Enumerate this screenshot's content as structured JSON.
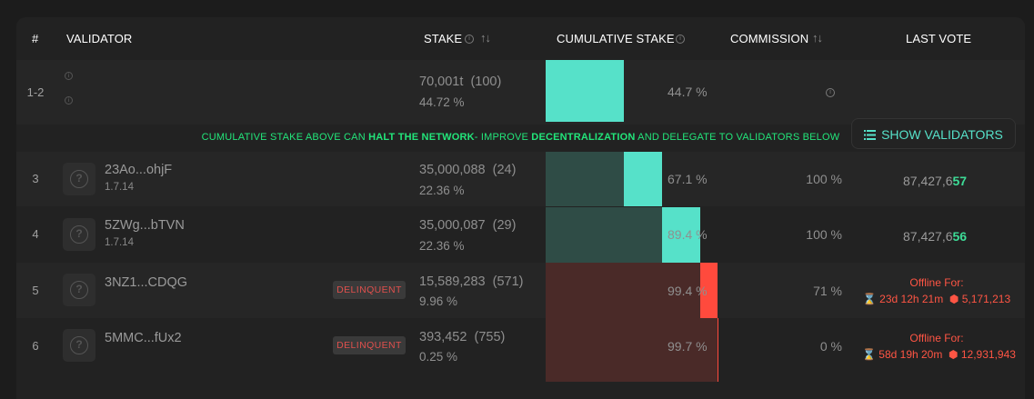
{
  "colors": {
    "cumulative_active": "#56e1c9",
    "cumulative_past": "#2f4c46",
    "delinquent_bg": "#4a2a28",
    "delinquent_bar": "#ff4a3d",
    "warning_text": "#22e57a",
    "last_vote_highlight": "#3ddc97",
    "offline_text": "#ff5544"
  },
  "header": {
    "rank": "#",
    "validator": "VALIDATOR",
    "stake": "STAKE",
    "cumulative_stake": "CUMULATIVE STAKE",
    "commission": "COMMISSION",
    "last_vote": "LAST VOTE",
    "sort_icons": "↑↓"
  },
  "superminority": {
    "rank": "1-2",
    "stake_amount": "70,001t",
    "stake_count": "(100)",
    "stake_percent": "44.72 %",
    "cumulative_percent": "44.7 %",
    "cumulative_value": 44.7,
    "show_validators_label": "SHOW VALIDATORS"
  },
  "warning": {
    "part1": "CUMULATIVE STAKE ABOVE CAN ",
    "strong1": "HALT THE NETWORK",
    "part2": "- IMPROVE ",
    "strong2": "DECENTRALIZATION",
    "part3": " AND DELEGATE TO VALIDATORS BELOW"
  },
  "validators": [
    {
      "rank": "3",
      "name": "23Ao...ohjF",
      "version": "1.7.14",
      "stake_amount": "35,000,088",
      "stake_count": "(24)",
      "stake_percent": "22.36 %",
      "cumulative_percent": "67.1 %",
      "cumulative_value": 67.1,
      "commission": "100 %",
      "last_vote_prefix": "87,427,6",
      "last_vote_suffix": "57"
    },
    {
      "rank": "4",
      "name": "5ZWg...bTVN",
      "version": "1.7.14",
      "stake_amount": "35,000,087",
      "stake_count": "(29)",
      "stake_percent": "22.36 %",
      "cumulative_percent": "89.4 %",
      "cumulative_value": 89.4,
      "commission": "100 %",
      "last_vote_prefix": "87,427,6",
      "last_vote_suffix": "56"
    },
    {
      "rank": "5",
      "name": "3NZ1...CDQG",
      "badge": "DELINQUENT",
      "stake_amount": "15,589,283",
      "stake_count": "(571)",
      "stake_percent": "9.96 %",
      "cumulative_percent": "99.4 %",
      "cumulative_value": 99.4,
      "commission": "71 %",
      "offline_title": "Offline For:",
      "offline_time": "23d 12h 21m",
      "offline_slots": "5,171,213"
    },
    {
      "rank": "6",
      "name": "5MMC...fUx2",
      "badge": "DELINQUENT",
      "stake_amount": "393,452",
      "stake_count": "(755)",
      "stake_percent": "0.25 %",
      "cumulative_percent": "99.7 %",
      "cumulative_value": 99.7,
      "commission": "0 %",
      "offline_title": "Offline For:",
      "offline_time": "58d 19h 20m",
      "offline_slots": "12,931,943"
    }
  ]
}
